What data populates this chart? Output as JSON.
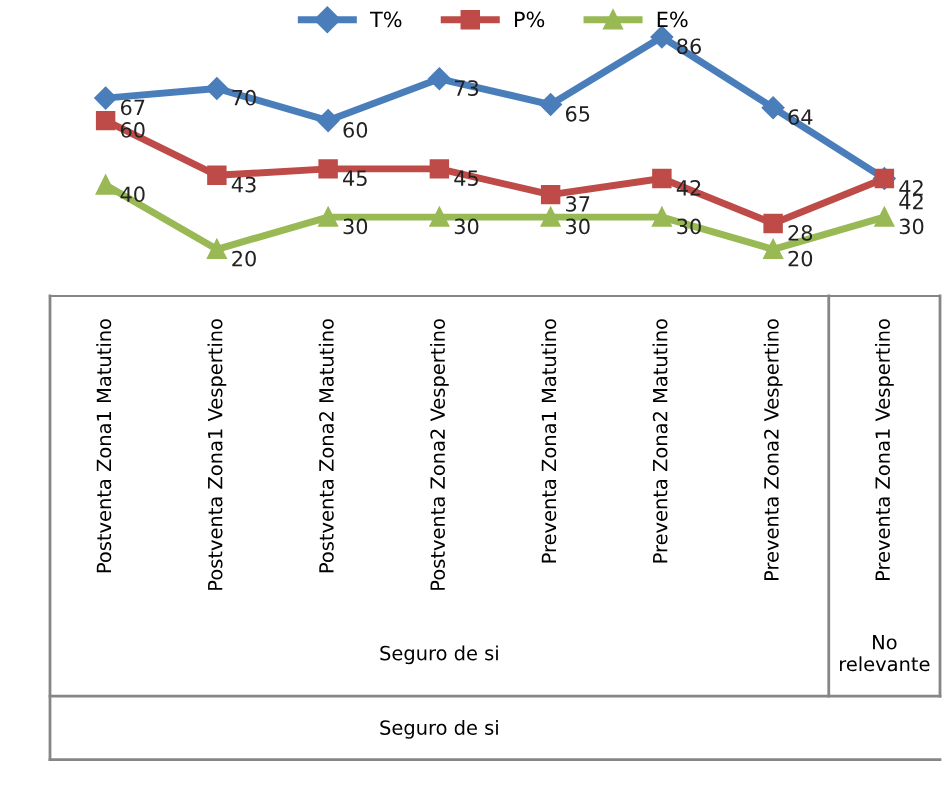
{
  "chart_data": {
    "type": "line",
    "categories": [
      "Postventa Zona1 Matutino",
      "Postventa Zona1 Vespertino",
      "Postventa Zona2 Matutino",
      "Postventa Zona2 Vespertino",
      "Preventa Zona1 Matutino",
      "Preventa Zona2 Matutino",
      "Preventa Zona2 Vespertino",
      "Preventa Zona1 Vespertino"
    ],
    "series": [
      {
        "name": "T%",
        "color": "#4a7ebb",
        "marker": "diamond",
        "values": [
          67,
          70,
          60,
          73,
          65,
          86,
          64,
          42
        ]
      },
      {
        "name": "P%",
        "color": "#be4b48",
        "marker": "square",
        "values": [
          60,
          43,
          45,
          45,
          37,
          42,
          28,
          42
        ]
      },
      {
        "name": "E%",
        "color": "#98b954",
        "marker": "triangle",
        "values": [
          40,
          20,
          30,
          30,
          30,
          30,
          20,
          30
        ]
      }
    ],
    "data_labels": true,
    "legend": "top",
    "annotations": [
      "Seguro de si",
      "No relevante",
      "Seguro de si"
    ]
  }
}
